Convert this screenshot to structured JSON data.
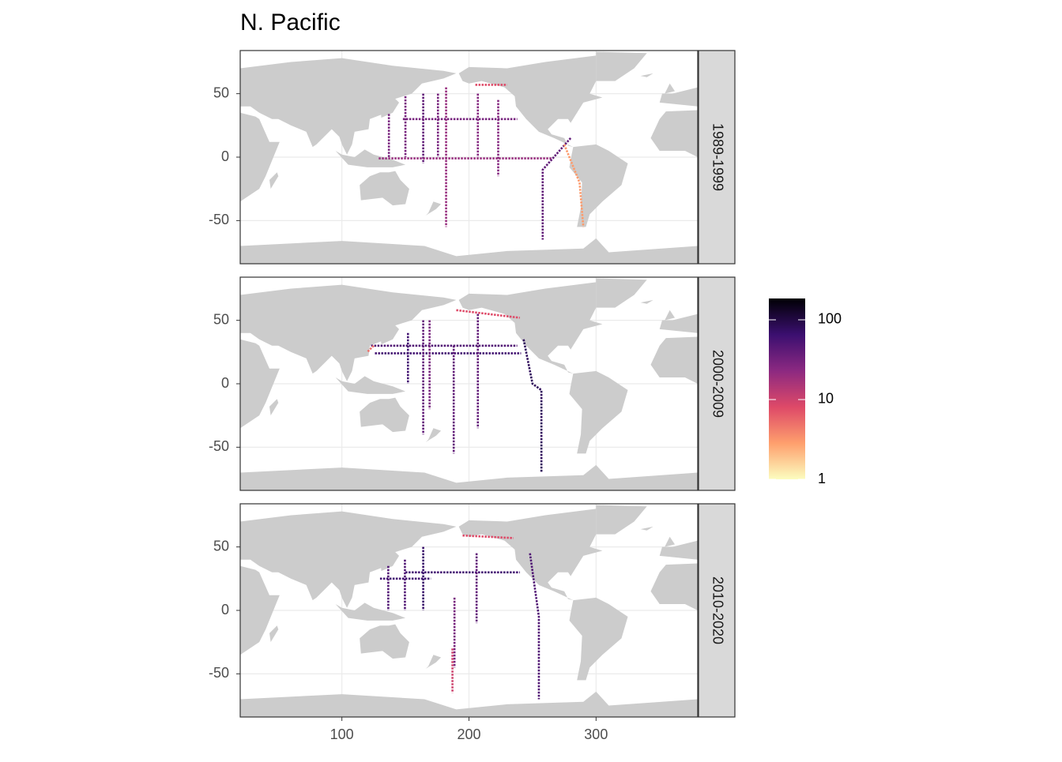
{
  "chart_data": {
    "type": "map",
    "title": "N. Pacific",
    "xlim": [
      20,
      380
    ],
    "ylim": [
      -84,
      84
    ],
    "xticks": [
      100,
      200,
      300
    ],
    "yticks": [
      -50,
      0,
      50
    ],
    "grid": true,
    "color_scale": {
      "lim": [
        1,
        185
      ],
      "ticks": [
        1,
        10,
        100
      ],
      "log": true,
      "colors": [
        "#fcfdbf",
        "#fe9f6d",
        "#de4968",
        "#8c2981",
        "#3b0f70",
        "#000004"
      ]
    },
    "facets": [
      {
        "label": "1989-1999",
        "tracks": [
          {
            "x": [
              164,
              164
            ],
            "y": [
              50,
              -5
            ],
            "value": 40
          },
          {
            "x": [
              150,
              150
            ],
            "y": [
              48,
              0
            ],
            "value": 30
          },
          {
            "x": [
              137,
              137
            ],
            "y": [
              34,
              0
            ],
            "value": 30
          },
          {
            "x": [
              175.6,
              175.6
            ],
            "y": [
              50,
              0
            ],
            "value": 30
          },
          {
            "x": [
              182,
              182
            ],
            "y": [
              55,
              -55
            ],
            "value": 20
          },
          {
            "x": [
              207,
              207
            ],
            "y": [
              50,
              0
            ],
            "value": 25
          },
          {
            "x": [
              223,
              223
            ],
            "y": [
              45,
              -15
            ],
            "value": 25
          },
          {
            "x": [
              148,
              238
            ],
            "y": [
              30,
              30
            ],
            "value": 30
          },
          {
            "x": [
              129,
              265
            ],
            "y": [
              -1,
              -1
            ],
            "value": 20
          },
          {
            "x": [
              280,
              258,
              258
            ],
            "y": [
              15,
              -10,
              -65
            ],
            "value": 40
          },
          {
            "x": [
              275,
              287,
              290
            ],
            "y": [
              10,
              -20,
              -55
            ],
            "value": 3
          },
          {
            "x": [
              205,
              230
            ],
            "y": [
              57,
              57
            ],
            "value": 8
          }
        ]
      },
      {
        "label": "2000-2009",
        "tracks": [
          {
            "x": [
              126,
              241
            ],
            "y": [
              24,
              24
            ],
            "value": 60
          },
          {
            "x": [
              123,
              238
            ],
            "y": [
              30,
              30
            ],
            "value": 50
          },
          {
            "x": [
              152,
              152
            ],
            "y": [
              40,
              0
            ],
            "value": 60
          },
          {
            "x": [
              164,
              164
            ],
            "y": [
              50,
              -40
            ],
            "value": 40
          },
          {
            "x": [
              169,
              169
            ],
            "y": [
              50,
              -20
            ],
            "value": 30
          },
          {
            "x": [
              188,
              188
            ],
            "y": [
              30,
              -55
            ],
            "value": 40
          },
          {
            "x": [
              207,
              207
            ],
            "y": [
              55,
              -35
            ],
            "value": 40
          },
          {
            "x": [
              243,
              250,
              257,
              257
            ],
            "y": [
              35,
              0,
              -5,
              -70
            ],
            "value": 80
          },
          {
            "x": [
              190,
              240
            ],
            "y": [
              58,
              52
            ],
            "value": 8
          },
          {
            "x": [
              125,
              120
            ],
            "y": [
              30,
              25
            ],
            "value": 5
          }
        ]
      },
      {
        "label": "2010-2020",
        "tracks": [
          {
            "x": [
              150,
              240
            ],
            "y": [
              30,
              30
            ],
            "value": 60
          },
          {
            "x": [
              130,
              170
            ],
            "y": [
              25,
              25
            ],
            "value": 60
          },
          {
            "x": [
              164,
              164
            ],
            "y": [
              50,
              0
            ],
            "value": 70
          },
          {
            "x": [
              136.5,
              136.5
            ],
            "y": [
              35,
              0
            ],
            "value": 50
          },
          {
            "x": [
              149.6,
              149.6
            ],
            "y": [
              40,
              0
            ],
            "value": 50
          },
          {
            "x": [
              206,
              206
            ],
            "y": [
              45,
              -10
            ],
            "value": 40
          },
          {
            "x": [
              248,
              255,
              255
            ],
            "y": [
              45,
              -5,
              -70
            ],
            "value": 50
          },
          {
            "x": [
              188.6,
              188.6
            ],
            "y": [
              10,
              -45
            ],
            "value": 30
          },
          {
            "x": [
              187,
              187
            ],
            "y": [
              -30,
              -65
            ],
            "value": 10
          },
          {
            "x": [
              195,
              235
            ],
            "y": [
              59,
              57
            ],
            "value": 8
          }
        ]
      }
    ]
  }
}
